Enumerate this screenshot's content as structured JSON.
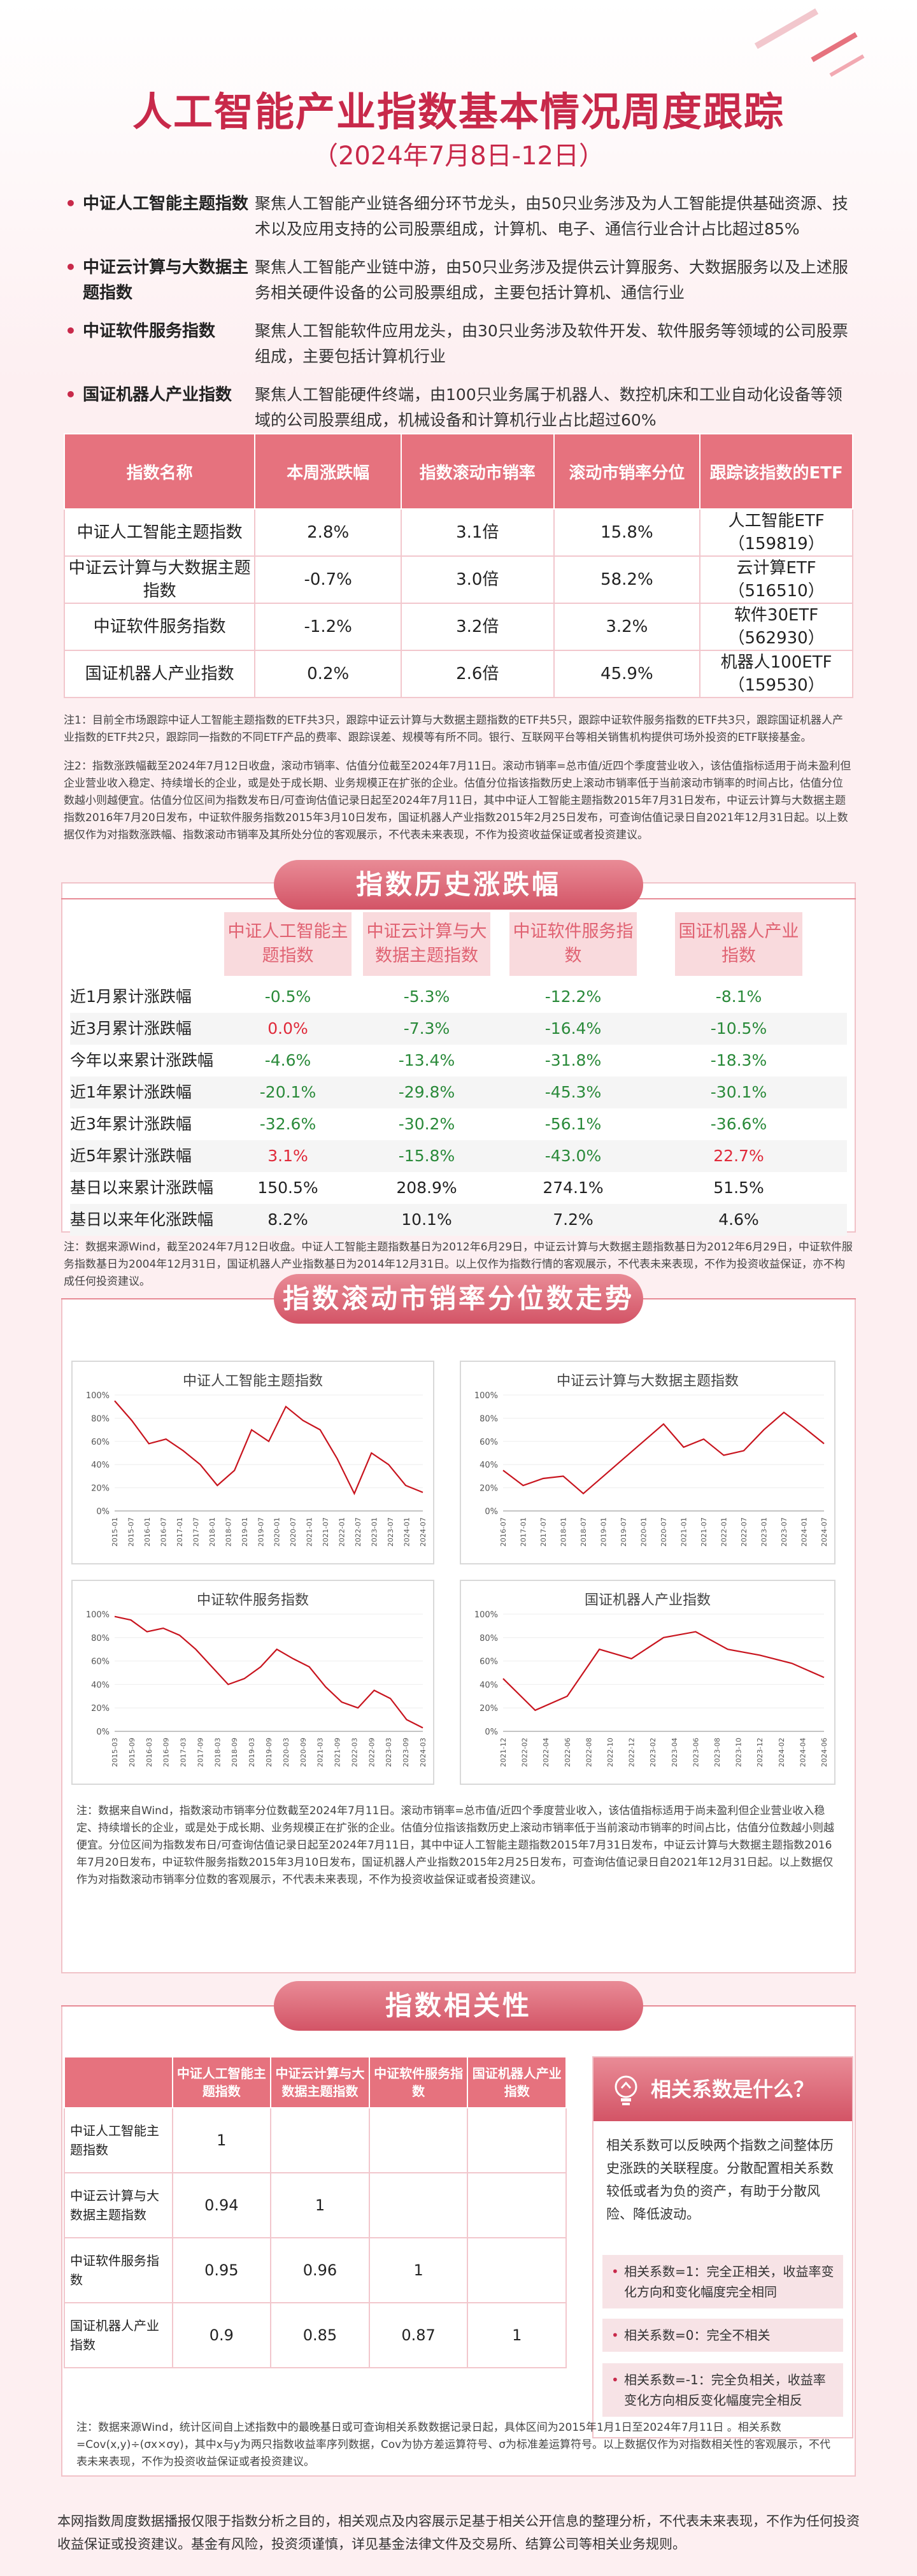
{
  "header": {
    "title": "人工智能产业指数基本情况周度跟踪",
    "subtitle": "（2024年7月8日-12日）"
  },
  "intro": [
    {
      "name": "中证人工智能主题指数",
      "desc": "聚焦人工智能产业链各细分环节龙头，由50只业务涉及为人工智能提供基础资源、技术以及应用支持的公司股票组成，计算机、电子、通信行业合计占比超过85%"
    },
    {
      "name": "中证云计算与大数据主题指数",
      "desc": "聚焦人工智能产业链中游，由50只业务涉及提供云计算服务、大数据服务以及上述服务相关硬件设备的公司股票组成，主要包括计算机、通信行业"
    },
    {
      "name": "中证软件服务指数",
      "desc": "聚焦人工智能软件应用龙头，由30只业务涉及软件开发、软件服务等领域的公司股票组成，主要包括计算机行业"
    },
    {
      "name": "国证机器人产业指数",
      "desc": "聚焦人工智能硬件终端，由100只业务属于机器人、数控机床和工业自动化设备等领域的公司股票组成，机械设备和计算机行业占比超过60%"
    }
  ],
  "summary": {
    "headers": [
      "指数名称",
      "本周涨跌幅",
      "指数滚动市销率",
      "滚动市销率分位",
      "跟踪该指数的ETF"
    ],
    "rows": [
      {
        "name": "中证人工智能主题指数",
        "chg": "2.8%",
        "chg_color": "red",
        "ps": "3.1倍",
        "pct": "15.8%",
        "etf": "人工智能ETF",
        "code": "（159819）"
      },
      {
        "name": "中证云计算与大数据主题指数",
        "chg": "-0.7%",
        "chg_color": "green",
        "ps": "3.0倍",
        "pct": "58.2%",
        "etf": "云计算ETF",
        "code": "（516510）"
      },
      {
        "name": "中证软件服务指数",
        "chg": "-1.2%",
        "chg_color": "green",
        "ps": "3.2倍",
        "pct": "3.2%",
        "etf": "软件30ETF",
        "code": "（562930）"
      },
      {
        "name": "国证机器人产业指数",
        "chg": "0.2%",
        "chg_color": "red",
        "ps": "2.6倍",
        "pct": "45.9%",
        "etf": "机器人100ETF",
        "code": "（159530）"
      }
    ]
  },
  "notes": {
    "n1": "注1：目前全市场跟踪中证人工智能主题指数的ETF共3只，跟踪中证云计算与大数据主题指数的ETF共5只，跟踪中证软件服务指数的ETF共3只，跟踪国证机器人产业指数的ETF共2只，跟踪同一指数的不同ETF产品的费率、跟踪误差、规模等有所不同。银行、互联网平台等相关销售机构提供可场外投资的ETF联接基金。",
    "n2": "注2：指数涨跌幅截至2024年7月12日收盘，滚动市销率、估值分位截至2024年7月11日。滚动市销率=总市值/近四个季度营业收入，该估值指标适用于尚未盈利但企业营业收入稳定、持续增长的企业，或是处于成长期、业务规模正在扩张的企业。估值分位指该指数历史上滚动市销率低于当前滚动市销率的时间占比，估值分位数越小则越便宜。估值分位区间为指数发布日/可查询估值记录日起至2024年7月11日，其中中证人工智能主题指数2015年7月31日发布，中证云计算与大数据主题指数2016年7月20日发布，中证软件服务指数2015年3月10日发布，国证机器人产业指数2015年2月25日发布，可查询估值记录日自2021年12月31日起。以上数据仅作为对指数涨跌幅、指数滚动市销率及其所处分位的客观展示，不代表未来表现，不作为投资收益保证或者投资建议。",
    "n3": "注：数据来源Wind，截至2024年7月12日收盘。中证人工智能主题指数基日为2012年6月29日，中证云计算与大数据主题指数基日为2012年6月29日，中证软件服务指数基日为2004年12月31日，国证机器人产业指数基日为2014年12月31日。以上仅作为指数行情的客观展示，不代表未来表现，不作为投资收益保证，亦不构成任何投资建议。",
    "n4": "注：数据来自Wind，指数滚动市销率分位数截至2024年7月11日。滚动市销率=总市值/近四个季度营业收入，该估值指标适用于尚未盈利但企业营业收入稳定、持续增长的企业，或是处于成长期、业务规模正在扩张的企业。估值分位指该指数历史上滚动市销率低于当前滚动市销率的时间占比，估值分位数越小则越便宜。分位区间为指数发布日/可查询估值记录日起至2024年7月11日，其中中证人工智能主题指数2015年7月31日发布，中证云计算与大数据主题指数2016年7月20日发布，中证软件服务指数2015年3月10日发布，国证机器人产业指数2015年2月25日发布，可查询估值记录日自2021年12月31日起。以上数据仅作为对指数滚动市销率分位数的客观展示，不代表未来表现，不作为投资收益保证或者投资建议。",
    "n5": "注：数据来源Wind，统计区间自上述指数中的最晚基日或可查询相关系数数据记录日起，具体区间为2015年1月1日至2024年7月11日 。相关系数=Cov(x,y)÷(σx×σy)，其中x与y为两只指数收益率序列数据，Cov为协方差运算符号、σ为标准差运算符号。以上数据仅作为对指数相关性的客观展示，不代表未来表现，不作为投资收益保证或者投资建议。"
  },
  "history": {
    "section_title": "指数历史涨跌幅",
    "headers": [
      "中证人工智能主题指数",
      "中证云计算与大数据主题指数",
      "中证软件服务指数",
      "国证机器人产业指数"
    ],
    "rows": [
      {
        "label": "近1月累计涨跌幅",
        "vals": [
          "-0.5%",
          "-5.3%",
          "-12.2%",
          "-8.1%"
        ]
      },
      {
        "label": "近3月累计涨跌幅",
        "vals": [
          "0.0%",
          "-7.3%",
          "-16.4%",
          "-10.5%"
        ]
      },
      {
        "label": "今年以来累计涨跌幅",
        "vals": [
          "-4.6%",
          "-13.4%",
          "-31.8%",
          "-18.3%"
        ]
      },
      {
        "label": "近1年累计涨跌幅",
        "vals": [
          "-20.1%",
          "-29.8%",
          "-45.3%",
          "-30.1%"
        ]
      },
      {
        "label": "近3年累计涨跌幅",
        "vals": [
          "-32.6%",
          "-30.2%",
          "-56.1%",
          "-36.6%"
        ]
      },
      {
        "label": "近5年累计涨跌幅",
        "vals": [
          "3.1%",
          "-15.8%",
          "-43.0%",
          "22.7%"
        ]
      },
      {
        "label": "基日以来累计涨跌幅",
        "vals": [
          "150.5%",
          "208.9%",
          "274.1%",
          "51.5%"
        ]
      },
      {
        "label": "基日以来年化涨跌幅",
        "vals": [
          "8.2%",
          "10.1%",
          "7.2%",
          "4.6%"
        ]
      }
    ]
  },
  "trend": {
    "section_title": "指数滚动市销率分位数走势"
  },
  "chart_data": [
    {
      "type": "line",
      "title": "中证人工智能主题指数",
      "ylim": [
        0,
        100
      ],
      "yticks": [
        "100%",
        "80%",
        "60%",
        "40%",
        "20%",
        "0%"
      ],
      "x": [
        "2015-09",
        "2016-03",
        "2016-09",
        "2017-03",
        "2017-09",
        "2018-03",
        "2018-09",
        "2019-03",
        "2019-09",
        "2020-03",
        "2020-09",
        "2021-03",
        "2021-09",
        "2022-03",
        "2022-09",
        "2023-03",
        "2023-09",
        "2024-03",
        "2024-07"
      ],
      "xticks": [
        "2015-01",
        "2015-07",
        "2016-01",
        "2016-07",
        "2017-01",
        "2017-07",
        "2018-01",
        "2018-07",
        "2019-01",
        "2019-07",
        "2020-01",
        "2020-07",
        "2021-01",
        "2021-07",
        "2022-01",
        "2022-07",
        "2023-01",
        "2023-07",
        "2024-01",
        "2024-07"
      ],
      "values": [
        95,
        78,
        58,
        62,
        52,
        40,
        22,
        35,
        70,
        60,
        90,
        78,
        70,
        45,
        15,
        50,
        40,
        22,
        16
      ],
      "color": "#c8141e"
    },
    {
      "type": "line",
      "title": "中证云计算与大数据主题指数",
      "ylim": [
        0,
        100
      ],
      "yticks": [
        "100%",
        "80%",
        "60%",
        "40%",
        "20%",
        "0%"
      ],
      "x": [
        "2016-07",
        "2017-01",
        "2017-07",
        "2018-01",
        "2018-07",
        "2019-01",
        "2019-07",
        "2020-01",
        "2020-07",
        "2021-01",
        "2021-07",
        "2022-01",
        "2022-07",
        "2023-01",
        "2023-07",
        "2024-01",
        "2024-07"
      ],
      "xticks": [
        "2016-07",
        "2017-01",
        "2017-07",
        "2018-01",
        "2018-07",
        "2019-01",
        "2019-07",
        "2020-01",
        "2020-07",
        "2021-01",
        "2021-07",
        "2022-01",
        "2022-07",
        "2023-01",
        "2023-07",
        "2024-01",
        "2024-07"
      ],
      "values": [
        35,
        22,
        28,
        30,
        15,
        30,
        45,
        60,
        75,
        55,
        62,
        48,
        52,
        70,
        85,
        72,
        58
      ],
      "color": "#c8141e"
    },
    {
      "type": "line",
      "title": "中证软件服务指数",
      "ylim": [
        0,
        100
      ],
      "yticks": [
        "100%",
        "80%",
        "60%",
        "40%",
        "20%",
        "0%"
      ],
      "x": [
        "2015-03",
        "2015-09",
        "2016-03",
        "2016-09",
        "2017-03",
        "2017-09",
        "2018-03",
        "2018-09",
        "2019-03",
        "2019-09",
        "2020-03",
        "2020-09",
        "2021-03",
        "2021-09",
        "2022-03",
        "2022-09",
        "2023-03",
        "2023-09",
        "2024-03",
        "2024-07"
      ],
      "xticks": [
        "2015-03",
        "2015-09",
        "2016-03",
        "2016-09",
        "2017-03",
        "2017-09",
        "2018-03",
        "2018-09",
        "2019-03",
        "2019-09",
        "2020-03",
        "2020-09",
        "2021-03",
        "2021-09",
        "2022-03",
        "2022-09",
        "2023-03",
        "2023-09",
        "2024-03"
      ],
      "values": [
        98,
        95,
        85,
        88,
        82,
        70,
        55,
        40,
        45,
        55,
        70,
        62,
        55,
        38,
        25,
        20,
        35,
        28,
        10,
        3
      ],
      "color": "#c8141e"
    },
    {
      "type": "line",
      "title": "国证机器人产业指数",
      "ylim": [
        0,
        100
      ],
      "yticks": [
        "100%",
        "80%",
        "60%",
        "40%",
        "20%",
        "0%"
      ],
      "x": [
        "2021-12",
        "2022-03",
        "2022-06",
        "2022-09",
        "2022-12",
        "2023-03",
        "2023-06",
        "2023-09",
        "2023-12",
        "2024-03",
        "2024-07"
      ],
      "xticks": [
        "2021-12",
        "2022-02",
        "2022-04",
        "2022-06",
        "2022-08",
        "2022-10",
        "2022-12",
        "2023-02",
        "2023-04",
        "2023-06",
        "2023-08",
        "2023-10",
        "2023-12",
        "2024-02",
        "2024-04",
        "2024-06"
      ],
      "values": [
        45,
        18,
        30,
        70,
        62,
        80,
        85,
        70,
        65,
        58,
        46
      ],
      "color": "#c8141e"
    }
  ],
  "correlation": {
    "section_title": "指数相关性",
    "headers": [
      "中证人工智能主题指数",
      "中证云计算与大数据主题指数",
      "中证软件服务指数",
      "国证机器人产业指数"
    ],
    "rows": [
      {
        "label": "中证人工智能主题指数",
        "vals": [
          "1",
          "",
          "",
          ""
        ]
      },
      {
        "label": "中证云计算与大数据主题指数",
        "vals": [
          "0.94",
          "1",
          "",
          ""
        ]
      },
      {
        "label": "中证软件服务指数",
        "vals": [
          "0.95",
          "0.96",
          "1",
          ""
        ]
      },
      {
        "label": "国证机器人产业指数",
        "vals": [
          "0.9",
          "0.85",
          "0.87",
          "1"
        ]
      }
    ],
    "side_title": "相关系数是什么？",
    "side_desc": "相关系数可以反映两个指数之间整体历史涨跌的关联程度。分散配置相关系数较低或者为负的资产，有助于分散风险、降低波动。",
    "side_items": [
      "相关系数=1：完全正相关，收益率变化方向和变化幅度完全相同",
      "相关系数=0：完全不相关",
      "相关系数=-1：完全负相关，收益率变化方向相反变化幅度完全相反"
    ]
  },
  "footer": "本网指数周度数据播报仅限于指数分析之目的，相关观点及内容展示足基于相关公开信息的整理分析，不代表未来表现，不作为任何投资收益保证或投资建议。基金有风险，投资须谨慎，详见基金法律文件及交易所、结算公司等相关业务规则。",
  "colors": {
    "accent": "#c8294a",
    "header_bg": "#e6727e",
    "line": "#c8141e"
  }
}
